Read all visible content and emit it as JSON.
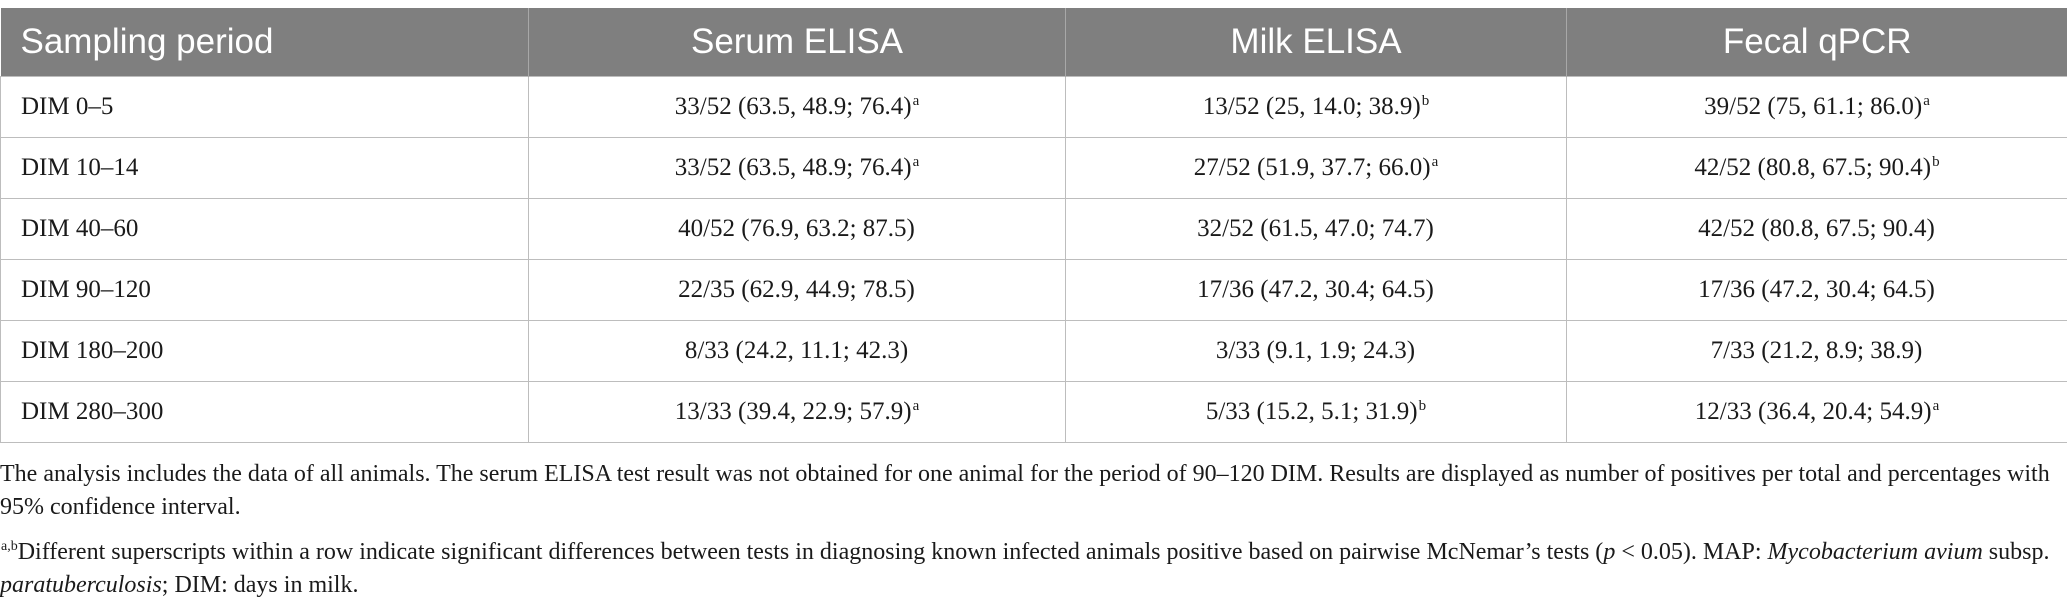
{
  "table": {
    "headers": [
      "Sampling period",
      "Serum ELISA",
      "Milk ELISA",
      "Fecal qPCR"
    ],
    "rows": [
      {
        "period": "DIM 0–5",
        "serum": {
          "v": "33/52 (63.5, 48.9; 76.4)",
          "sup": "a"
        },
        "milk": {
          "v": "13/52 (25, 14.0; 38.9)",
          "sup": "b"
        },
        "fecal": {
          "v": "39/52 (75, 61.1; 86.0)",
          "sup": "a"
        }
      },
      {
        "period": "DIM 10–14",
        "serum": {
          "v": "33/52 (63.5, 48.9; 76.4)",
          "sup": "a"
        },
        "milk": {
          "v": "27/52 (51.9, 37.7; 66.0)",
          "sup": "a"
        },
        "fecal": {
          "v": "42/52 (80.8, 67.5; 90.4)",
          "sup": "b"
        }
      },
      {
        "period": "DIM 40–60",
        "serum": {
          "v": "40/52 (76.9, 63.2; 87.5)",
          "sup": ""
        },
        "milk": {
          "v": "32/52 (61.5, 47.0; 74.7)",
          "sup": ""
        },
        "fecal": {
          "v": "42/52 (80.8, 67.5; 90.4)",
          "sup": ""
        }
      },
      {
        "period": "DIM 90–120",
        "serum": {
          "v": "22/35 (62.9, 44.9; 78.5)",
          "sup": ""
        },
        "milk": {
          "v": "17/36 (47.2, 30.4; 64.5)",
          "sup": ""
        },
        "fecal": {
          "v": "17/36 (47.2, 30.4; 64.5)",
          "sup": ""
        }
      },
      {
        "period": "DIM 180–200",
        "serum": {
          "v": "8/33 (24.2, 11.1; 42.3)",
          "sup": ""
        },
        "milk": {
          "v": "3/33 (9.1, 1.9; 24.3)",
          "sup": ""
        },
        "fecal": {
          "v": "7/33 (21.2, 8.9; 38.9)",
          "sup": ""
        }
      },
      {
        "period": "DIM 280–300",
        "serum": {
          "v": "13/33 (39.4, 22.9; 57.9)",
          "sup": "a"
        },
        "milk": {
          "v": "5/33 (15.2, 5.1; 31.9)",
          "sup": "b"
        },
        "fecal": {
          "v": "12/33 (36.4, 20.4; 54.9)",
          "sup": "a"
        }
      }
    ]
  },
  "notes": {
    "n1": "The analysis includes the data of all animals. The serum ELISA test result was not obtained for one animal for the period of 90–120 DIM. Results are displayed as number of positives per total and percentages with 95% confidence interval.",
    "n2_sup": "a,b",
    "n2_a": "Different superscripts within a row indicate significant differences between tests in diagnosing known infected animals positive based on pairwise McNemar’s tests (",
    "n2_p": "p",
    "n2_b": " < 0.05). MAP: ",
    "n2_org": "Mycobacterium avium",
    "n2_c": " subsp. ",
    "n2_sub": "paratuberculosis",
    "n2_d": "; DIM: days in milk."
  }
}
